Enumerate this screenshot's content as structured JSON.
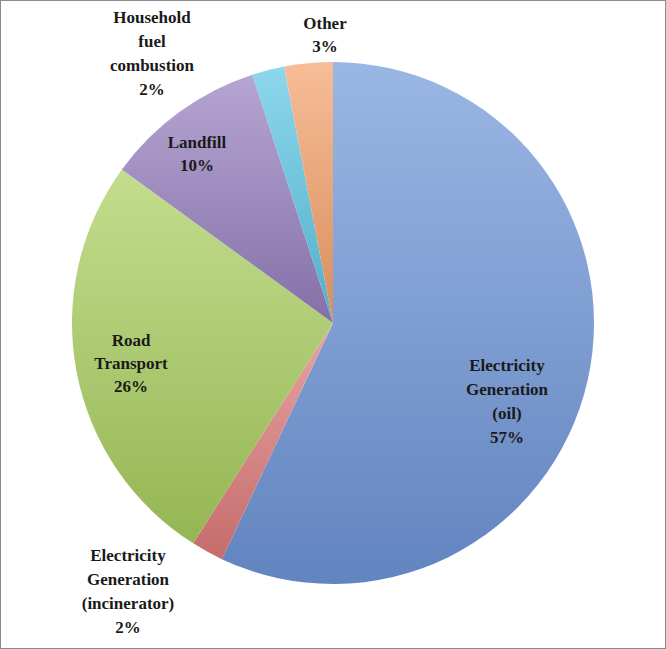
{
  "chart_data": {
    "type": "pie",
    "categories": [
      "Electricity Generation (oil)",
      "Electricity Generation (incinerator)",
      "Road Transport",
      "Landfill",
      "Household fuel combustion",
      "Other"
    ],
    "values": [
      57,
      2,
      26,
      10,
      2,
      3
    ],
    "value_labels": [
      "57%",
      "2%",
      "26%",
      "10%",
      "2%",
      "3%"
    ],
    "colors": [
      "#6f96d9",
      "#e07b7b",
      "#a9cf5e",
      "#967fbf",
      "#5cc6e4",
      "#f4a06a"
    ],
    "data_labels": true
  }
}
